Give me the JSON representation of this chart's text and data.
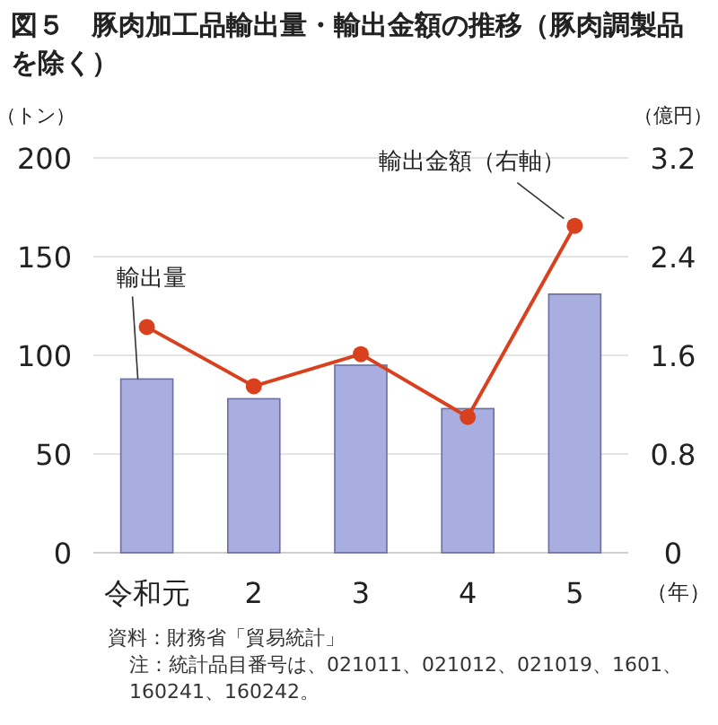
{
  "chart_data": {
    "type": "bar",
    "title": "図５　豚肉加工品輸出量・輸出金額の推移（豚肉調製品を除く）",
    "categories": [
      "令和元",
      "2",
      "3",
      "4",
      "5"
    ],
    "xlabel": "（年）",
    "ylabel": "（トン）",
    "y2label": "（億円）",
    "series": [
      {
        "name": "輸出量",
        "color": "#a9aee0",
        "values": [
          88,
          78,
          95,
          73,
          131
        ]
      },
      {
        "name": "輸出金額（右軸）",
        "type": "line",
        "axis": "y2",
        "color": "#d9411e",
        "values": [
          1.83,
          1.35,
          1.61,
          1.1,
          2.65
        ]
      }
    ],
    "ylim": [
      0,
      200
    ],
    "yticks": [
      0,
      50,
      100,
      150,
      200
    ],
    "y2lim": [
      0,
      3.2
    ],
    "y2ticks": [
      {
        "value": 0,
        "label": "0"
      },
      {
        "value": 0.8,
        "label": "0.8"
      },
      {
        "value": 1.6,
        "label": "1.6"
      },
      {
        "value": 2.4,
        "label": "2.4"
      },
      {
        "value": 3.2,
        "label": "3.2"
      }
    ],
    "grid": "y",
    "legend": false,
    "marker": "circle",
    "line_style": "solid",
    "annotations": [
      "資料：財務省「貿易統計」",
      "注：統計品目番号は、021011、021012、021019、1601、160241、160242。"
    ]
  }
}
